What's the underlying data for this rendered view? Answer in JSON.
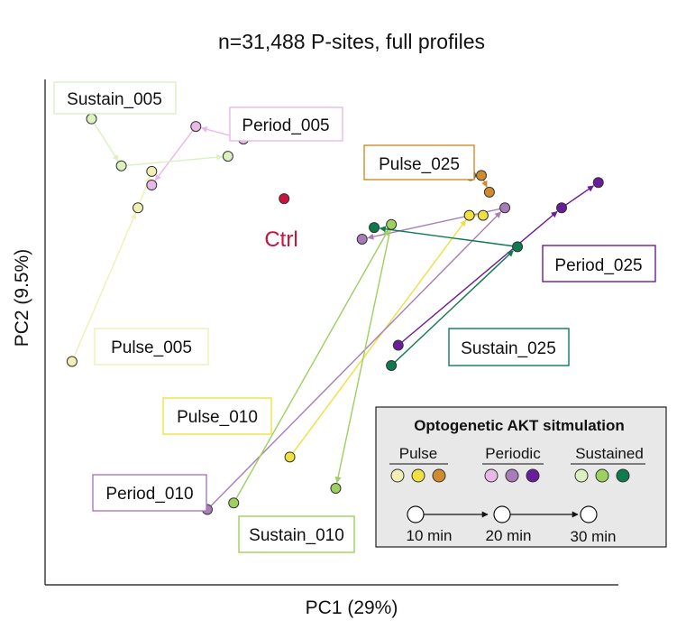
{
  "colors": {
    "pulse_005": "#f0f0b4",
    "pulse_010": "#f0e040",
    "pulse_025": "#d08c2c",
    "period_005": "#e8b8e8",
    "period_010": "#a87cb8",
    "period_025": "#6a1c9a",
    "sustain_005": "#dcf0c0",
    "sustain_010": "#9cd060",
    "sustain_025": "#0e7a50",
    "ctrl": "#c8143c",
    "legend_bg": "#e8e8e8"
  },
  "chart_data": {
    "type": "scatter",
    "title": "n=31,488 P-sites, full profiles",
    "xlabel": "PC1 (29%)",
    "ylabel": "PC2 (9.5%)",
    "xlim": [
      0,
      100
    ],
    "ylim": [
      0,
      100
    ],
    "grid": false,
    "ctrl": {
      "name": "Ctrl",
      "x": 41.7,
      "y": 76.4,
      "color_key": "ctrl"
    },
    "series": [
      {
        "name": "Pulse_005",
        "color_key": "pulse_005",
        "points": [
          [
            4.7,
            44.2
          ],
          [
            16.2,
            74.6
          ],
          [
            18.6,
            81.8
          ]
        ]
      },
      {
        "name": "Pulse_010",
        "color_key": "pulse_010",
        "points": [
          [
            42.7,
            25.3
          ],
          [
            74.0,
            73.1
          ],
          [
            76.4,
            73.1
          ]
        ]
      },
      {
        "name": "Pulse_025",
        "color_key": "pulse_025",
        "points": [
          [
            74.2,
            81.0
          ],
          [
            76.1,
            81.0
          ],
          [
            77.5,
            77.7
          ]
        ]
      },
      {
        "name": "Period_005",
        "color_key": "period_005",
        "points": [
          [
            34.6,
            88.2
          ],
          [
            26.3,
            90.7
          ],
          [
            18.6,
            79.1
          ]
        ]
      },
      {
        "name": "Period_010",
        "color_key": "period_010",
        "points": [
          [
            28.3,
            14.9
          ],
          [
            80.2,
            74.6
          ],
          [
            55.3,
            68.4
          ]
        ]
      },
      {
        "name": "Period_025",
        "color_key": "period_025",
        "points": [
          [
            61.6,
            47.4
          ],
          [
            90.1,
            74.6
          ],
          [
            96.5,
            79.6
          ]
        ]
      },
      {
        "name": "Sustain_005",
        "color_key": "sustain_005",
        "points": [
          [
            8.1,
            92.2
          ],
          [
            13.3,
            82.9
          ],
          [
            31.9,
            84.8
          ]
        ]
      },
      {
        "name": "Sustain_010",
        "color_key": "sustain_010",
        "points": [
          [
            32.9,
            16.2
          ],
          [
            60.4,
            71.3
          ],
          [
            50.7,
            19.1
          ]
        ]
      },
      {
        "name": "Sustain_025",
        "color_key": "sustain_025",
        "points": [
          [
            60.4,
            43.4
          ],
          [
            82.4,
            66.9
          ],
          [
            57.4,
            70.7
          ]
        ]
      }
    ],
    "legend": {
      "title": "Optogenetic AKT sitmulation",
      "placement": "bottom-right",
      "groups": [
        {
          "label": "Pulse",
          "color_keys": [
            "pulse_005",
            "pulse_010",
            "pulse_025"
          ]
        },
        {
          "label": "Periodic",
          "color_keys": [
            "period_005",
            "period_010",
            "period_025"
          ]
        },
        {
          "label": "Sustained",
          "color_keys": [
            "sustain_005",
            "sustain_010",
            "sustain_025"
          ]
        }
      ],
      "time_labels": [
        "10 min",
        "20 min",
        "30 min"
      ]
    }
  }
}
